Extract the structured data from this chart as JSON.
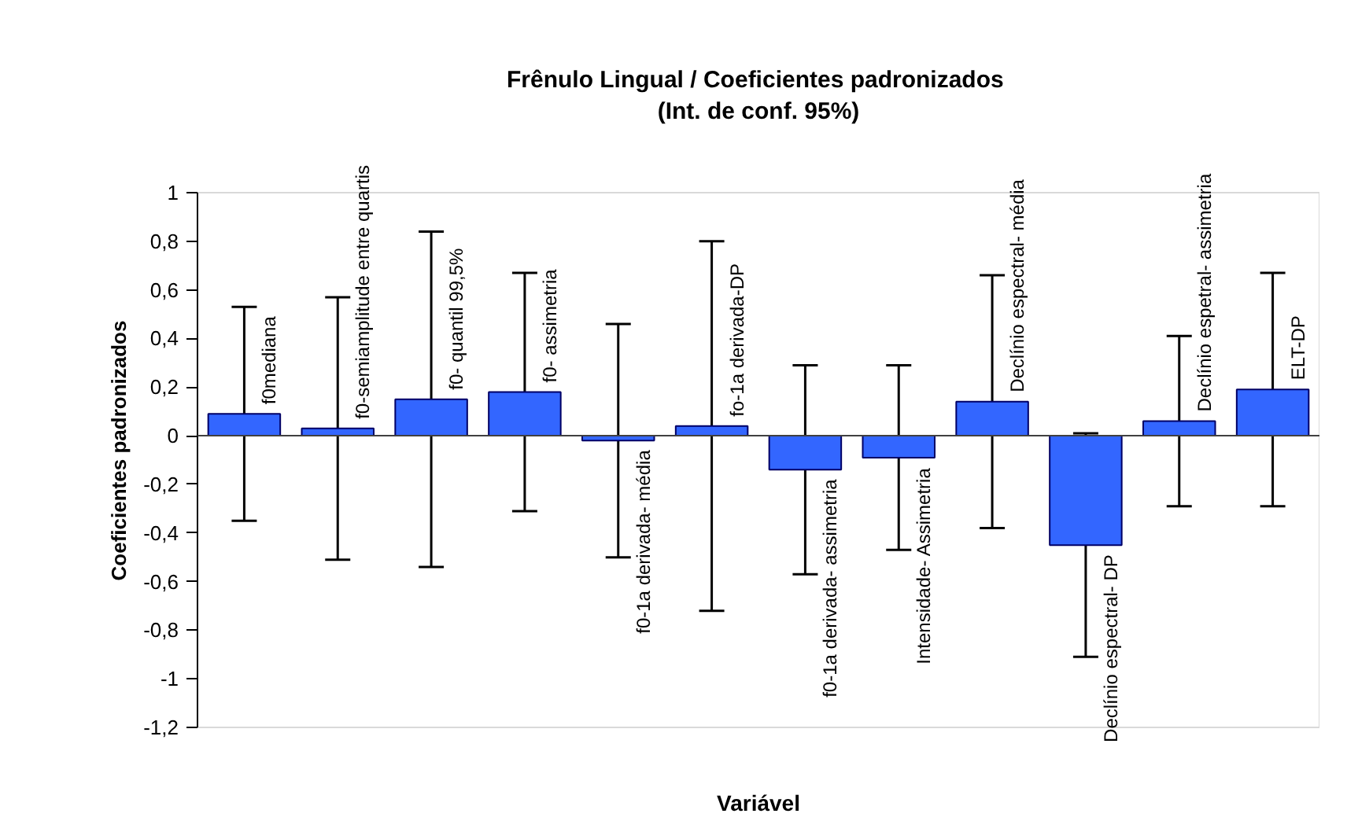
{
  "chart_data": {
    "type": "bar",
    "title": "Frênulo Lingual  / Coeficientes padronizados",
    "subtitle": "(Int. de conf. 95%)",
    "xlabel": "Variável",
    "ylabel": "Coeficientes padronizados",
    "categories": [
      "f0mediana",
      "f0-semiamplitude entre quartis",
      "f0- quantil 99,5%",
      "f0- assimetria",
      "f0-1a derivada- média",
      "fo-1a derivada-DP",
      "f0-1a derivada- assimetria",
      "Intensidade- Assimetria",
      "Declínio espectral- média",
      "Declínio espectral- DP",
      "Declínio espetral- assimetria",
      "ELT-DP"
    ],
    "values": [
      0.09,
      0.03,
      0.15,
      0.18,
      -0.02,
      0.04,
      -0.14,
      -0.09,
      0.14,
      -0.45,
      0.06,
      0.19
    ],
    "errors": [
      0.44,
      0.54,
      0.69,
      0.49,
      0.48,
      0.76,
      0.43,
      0.38,
      0.52,
      0.46,
      0.35,
      0.48
    ],
    "color": "#3366ff",
    "ylim": [
      -1.2,
      1
    ],
    "yticks": [
      1,
      {
        "value": 0.8,
        "label": "0,8"
      },
      {
        "value": 0.6,
        "label": "0,6"
      },
      {
        "value": 0.4,
        "label": "0,4"
      },
      {
        "value": 0.2,
        "label": "0,2"
      },
      0,
      {
        "value": -0.2,
        "label": "-0,2"
      },
      {
        "value": -0.4,
        "label": "-0,4"
      },
      {
        "value": -0.6,
        "label": "-0,6"
      },
      {
        "value": -0.8,
        "label": "-0,8"
      },
      -1,
      {
        "value": -1.2,
        "label": "-1,2"
      }
    ],
    "ref_lines": [
      {
        "axis": "y",
        "value": 0,
        "color": "#404040"
      }
    ],
    "tick_labels": "y"
  }
}
